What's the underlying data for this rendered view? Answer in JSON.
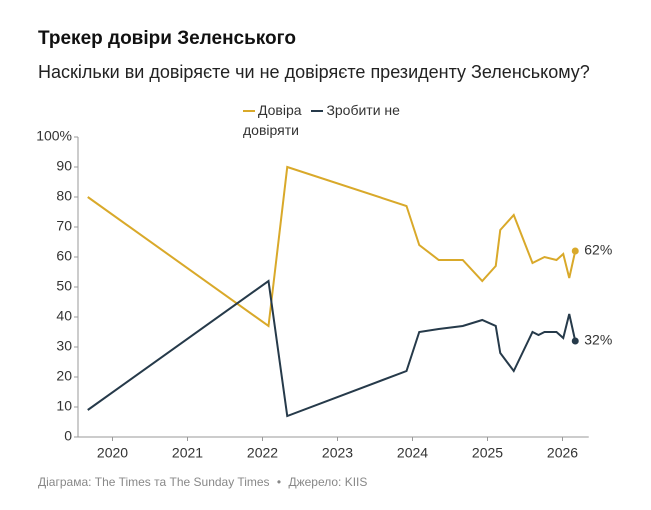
{
  "chart_data": {
    "type": "line",
    "title": "Трекер довіри Зеленського",
    "subtitle": "Наскільки ви довіряєте чи не довіряєте президенту Зеленському?",
    "x": [
      2019.67,
      2022.08,
      2022.33,
      2023.92,
      2024.09,
      2024.35,
      2024.67,
      2024.93,
      2025.11,
      2025.17,
      2025.35,
      2025.6,
      2025.68,
      2025.76,
      2025.92,
      2026.01,
      2026.09,
      2026.17
    ],
    "series": [
      {
        "name": "Довіра",
        "color": "#d9a92a",
        "values": [
          80,
          37,
          90,
          77,
          64,
          59,
          59,
          52,
          57,
          69,
          74,
          58,
          59,
          60,
          59,
          61,
          53,
          62
        ],
        "value_labels": [
          null,
          null,
          null,
          null,
          null,
          null,
          null,
          null,
          null,
          null,
          null,
          null,
          null,
          null,
          null,
          null,
          null,
          "62%"
        ]
      },
      {
        "name": "Зробити не довіряти",
        "color": "#263a4a",
        "values": [
          9,
          52,
          7,
          22,
          35,
          36,
          37,
          39,
          37,
          28,
          22,
          35,
          34,
          35,
          35,
          33,
          41,
          32
        ],
        "value_labels": [
          null,
          null,
          null,
          null,
          null,
          null,
          null,
          null,
          null,
          null,
          null,
          null,
          null,
          null,
          null,
          null,
          null,
          "32%"
        ]
      }
    ],
    "xlim": [
      2019.5,
      2026.35
    ],
    "xticks": [
      2020,
      2021,
      2022,
      2023,
      2024,
      2025,
      2026
    ],
    "ylim": [
      0,
      100
    ],
    "yticks": [
      0,
      10,
      20,
      30,
      40,
      50,
      60,
      70,
      80,
      90,
      {
        "value": 100,
        "label": "100%"
      }
    ],
    "grid": false
  },
  "footer": {
    "credit": "Діаграма: The Times та The Sunday Times",
    "separator": "•",
    "source": "Джерело: KIIS"
  }
}
